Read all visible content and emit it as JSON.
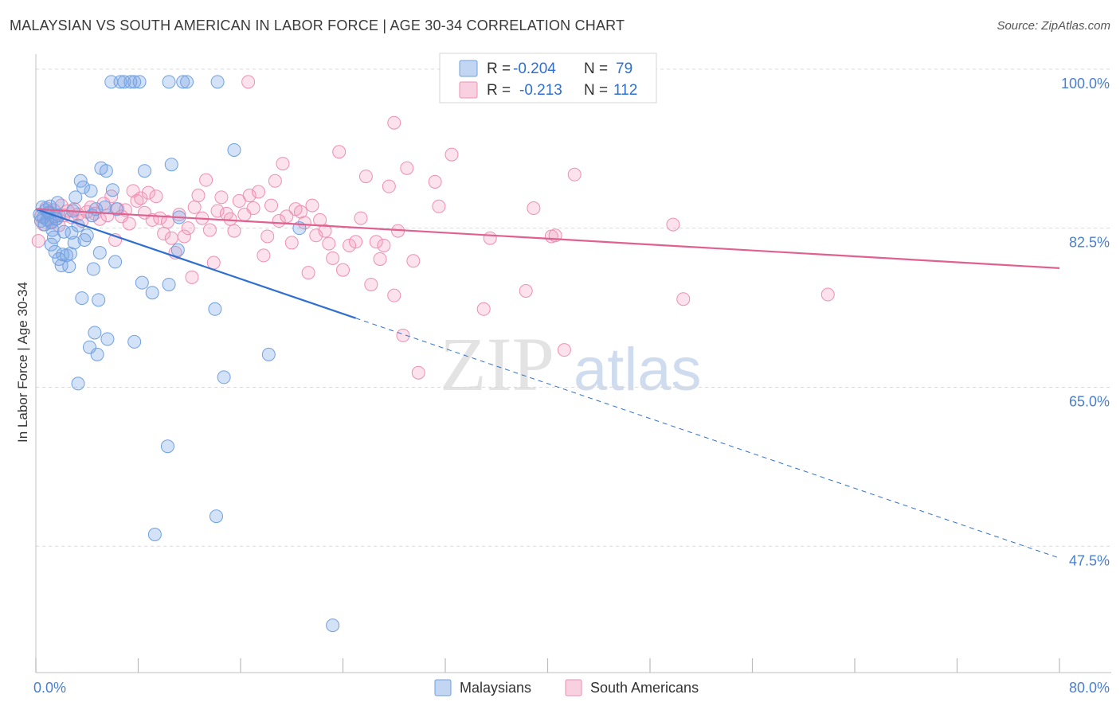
{
  "title": "MALAYSIAN VS SOUTH AMERICAN IN LABOR FORCE | AGE 30-34 CORRELATION CHART",
  "source": "Source: ZipAtlas.com",
  "watermark": {
    "zip": "ZIP",
    "atlas": "atlas"
  },
  "colors": {
    "blue": "#6fa0e0",
    "blue_fill": "rgba(120,165,230,0.32)",
    "blue_line": "#2e6fd0",
    "pink": "#ee8fb0",
    "pink_fill": "rgba(240,150,185,0.28)",
    "pink_line": "#e0608f",
    "tick_label": "#4a7fd0",
    "grid": "#d9d9d9"
  },
  "legend_top": [
    {
      "r_label": "R =",
      "r_value": "-0.204",
      "n_label": "N =",
      "n_value": "79",
      "color": "blue"
    },
    {
      "r_label": "R =",
      "r_value": "-0.213",
      "n_label": "N =",
      "n_value": "112",
      "color": "pink"
    }
  ],
  "legend_bottom": [
    {
      "label": "Malaysians",
      "color": "blue"
    },
    {
      "label": "South Americans",
      "color": "pink"
    }
  ],
  "chart_data": {
    "type": "scatter",
    "title": "MALAYSIAN VS SOUTH AMERICAN IN LABOR FORCE | AGE 30-34 CORRELATION CHART",
    "xlabel": "",
    "ylabel": "In Labor Force | Age 30-34",
    "xlim": [
      0,
      80
    ],
    "ylim": [
      35,
      102
    ],
    "x_tick_labels": [
      "0.0%",
      "80.0%"
    ],
    "y_ticks": [
      47.5,
      65.0,
      82.5,
      100.0
    ],
    "y_tick_labels": [
      "47.5%",
      "65.0%",
      "82.5%",
      "100.0%"
    ],
    "grid": true,
    "legend_position": "top-center",
    "series": [
      {
        "name": "Malaysians",
        "r": -0.204,
        "n": 79,
        "trend": {
          "x0": 0,
          "y0": 86.0,
          "x1": 25,
          "y1": 74.0,
          "x_dashed_end": 80
        },
        "points": [
          [
            0.3,
            85.4
          ],
          [
            0.4,
            84.7
          ],
          [
            0.5,
            86.2
          ],
          [
            0.6,
            85.1
          ],
          [
            0.7,
            84.3
          ],
          [
            0.8,
            85.9
          ],
          [
            0.9,
            84.8
          ],
          [
            1.0,
            85.6
          ],
          [
            1.1,
            86.3
          ],
          [
            1.2,
            84.5
          ],
          [
            1.3,
            83.7
          ],
          [
            1.4,
            82.9
          ],
          [
            1.5,
            85.2
          ],
          [
            1.6,
            84.9
          ],
          [
            1.7,
            86.7
          ],
          [
            1.8,
            85.3
          ],
          [
            1.2,
            82.1
          ],
          [
            1.5,
            81.3
          ],
          [
            1.8,
            80.5
          ],
          [
            2.0,
            79.8
          ],
          [
            2.1,
            81.0
          ],
          [
            2.2,
            83.5
          ],
          [
            2.4,
            80.9
          ],
          [
            2.6,
            79.7
          ],
          [
            2.7,
            81.1
          ],
          [
            2.8,
            83.4
          ],
          [
            3.0,
            82.3
          ],
          [
            3.1,
            87.3
          ],
          [
            3.3,
            84.2
          ],
          [
            3.5,
            89.1
          ],
          [
            3.7,
            88.4
          ],
          [
            3.8,
            82.6
          ],
          [
            4.0,
            83.1
          ],
          [
            4.3,
            88.0
          ],
          [
            4.4,
            85.3
          ],
          [
            4.5,
            79.4
          ],
          [
            4.7,
            86.0
          ],
          [
            5.0,
            81.2
          ],
          [
            5.1,
            90.5
          ],
          [
            5.4,
            86.2
          ],
          [
            5.5,
            90.2
          ],
          [
            6.0,
            88.1
          ],
          [
            6.2,
            80.2
          ],
          [
            3.6,
            76.2
          ],
          [
            4.9,
            76.0
          ],
          [
            4.6,
            72.4
          ],
          [
            4.2,
            70.8
          ],
          [
            4.8,
            70.0
          ],
          [
            5.6,
            71.7
          ],
          [
            7.7,
            71.4
          ],
          [
            3.3,
            66.8
          ],
          [
            8.3,
            77.9
          ],
          [
            9.1,
            76.8
          ],
          [
            10.4,
            77.7
          ],
          [
            10.3,
            59.9
          ],
          [
            11.1,
            81.5
          ],
          [
            11.2,
            85.1
          ],
          [
            14.0,
            75.0
          ],
          [
            14.1,
            52.2
          ],
          [
            14.7,
            67.5
          ],
          [
            18.2,
            70.0
          ],
          [
            9.3,
            50.2
          ],
          [
            23.2,
            40.2
          ],
          [
            15.5,
            92.5
          ],
          [
            8.5,
            90.2
          ],
          [
            10.6,
            90.9
          ],
          [
            5.9,
            100.0
          ],
          [
            6.6,
            100.0
          ],
          [
            6.9,
            100.0
          ],
          [
            7.4,
            100.0
          ],
          [
            7.7,
            100.0
          ],
          [
            8.1,
            100.0
          ],
          [
            10.4,
            100.0
          ],
          [
            11.5,
            100.0
          ],
          [
            11.8,
            100.0
          ],
          [
            14.2,
            100.0
          ],
          [
            20.6,
            83.9
          ],
          [
            6.3,
            86.0
          ],
          [
            2.9,
            85.8
          ]
        ]
      },
      {
        "name": "South Americans",
        "r": -0.213,
        "n": 112,
        "trend": {
          "x0": 0,
          "y0": 86.0,
          "x1": 80,
          "y1": 79.5
        },
        "points": [
          [
            0.2,
            82.5
          ],
          [
            0.4,
            85.2
          ],
          [
            0.6,
            84.3
          ],
          [
            0.8,
            86.1
          ],
          [
            1.0,
            85.5
          ],
          [
            1.2,
            84.6
          ],
          [
            1.4,
            85.9
          ],
          [
            1.6,
            85.0
          ],
          [
            1.8,
            84.2
          ],
          [
            2.0,
            86.4
          ],
          [
            2.2,
            85.3
          ],
          [
            2.5,
            85.8
          ],
          [
            2.8,
            85.1
          ],
          [
            3.0,
            86.0
          ],
          [
            3.3,
            85.4
          ],
          [
            3.6,
            84.7
          ],
          [
            4.0,
            85.7
          ],
          [
            4.3,
            86.2
          ],
          [
            4.6,
            85.5
          ],
          [
            5.0,
            84.9
          ],
          [
            5.3,
            86.6
          ],
          [
            5.6,
            85.3
          ],
          [
            5.9,
            87.4
          ],
          [
            6.2,
            82.6
          ],
          [
            6.4,
            86.0
          ],
          [
            6.7,
            85.2
          ],
          [
            7.0,
            85.9
          ],
          [
            7.3,
            84.4
          ],
          [
            7.6,
            88.0
          ],
          [
            7.9,
            86.9
          ],
          [
            8.2,
            87.2
          ],
          [
            8.5,
            85.6
          ],
          [
            8.8,
            87.8
          ],
          [
            9.1,
            84.8
          ],
          [
            9.4,
            87.4
          ],
          [
            9.7,
            85.0
          ],
          [
            10.0,
            83.3
          ],
          [
            10.3,
            84.6
          ],
          [
            10.6,
            82.8
          ],
          [
            10.9,
            81.2
          ],
          [
            11.2,
            85.4
          ],
          [
            11.6,
            83.0
          ],
          [
            11.9,
            83.9
          ],
          [
            12.2,
            78.5
          ],
          [
            12.4,
            86.2
          ],
          [
            12.7,
            87.5
          ],
          [
            13.0,
            85.0
          ],
          [
            13.3,
            89.2
          ],
          [
            13.6,
            83.7
          ],
          [
            13.9,
            80.1
          ],
          [
            14.2,
            85.8
          ],
          [
            14.5,
            87.3
          ],
          [
            14.9,
            85.5
          ],
          [
            15.2,
            84.9
          ],
          [
            15.5,
            83.6
          ],
          [
            15.9,
            86.9
          ],
          [
            16.3,
            85.4
          ],
          [
            16.7,
            87.5
          ],
          [
            17.0,
            86.1
          ],
          [
            17.4,
            87.9
          ],
          [
            17.8,
            80.9
          ],
          [
            18.1,
            83.0
          ],
          [
            18.4,
            86.4
          ],
          [
            18.7,
            89.1
          ],
          [
            19.0,
            84.7
          ],
          [
            19.3,
            91.0
          ],
          [
            19.6,
            85.2
          ],
          [
            20.0,
            82.3
          ],
          [
            20.3,
            86.0
          ],
          [
            20.7,
            85.7
          ],
          [
            21.0,
            84.5
          ],
          [
            21.3,
            79.0
          ],
          [
            21.6,
            86.4
          ],
          [
            21.9,
            83.1
          ],
          [
            22.2,
            84.8
          ],
          [
            22.6,
            83.6
          ],
          [
            22.9,
            82.2
          ],
          [
            23.2,
            80.6
          ],
          [
            23.7,
            92.3
          ],
          [
            24.0,
            79.3
          ],
          [
            24.5,
            82.0
          ],
          [
            25.0,
            82.4
          ],
          [
            25.4,
            85.0
          ],
          [
            25.8,
            89.6
          ],
          [
            26.2,
            77.7
          ],
          [
            26.6,
            82.4
          ],
          [
            26.9,
            80.5
          ],
          [
            27.2,
            82.0
          ],
          [
            27.6,
            88.5
          ],
          [
            28.0,
            76.5
          ],
          [
            28.3,
            83.6
          ],
          [
            28.7,
            72.1
          ],
          [
            29.0,
            90.5
          ],
          [
            29.5,
            80.3
          ],
          [
            29.9,
            68.0
          ],
          [
            31.2,
            89.0
          ],
          [
            31.5,
            86.3
          ],
          [
            32.5,
            92.0
          ],
          [
            28.0,
            95.5
          ],
          [
            33.5,
            100.0
          ],
          [
            35.5,
            82.8
          ],
          [
            35.0,
            75.0
          ],
          [
            38.3,
            77.0
          ],
          [
            38.9,
            86.1
          ],
          [
            40.3,
            83.0
          ],
          [
            40.6,
            83.1
          ],
          [
            41.3,
            70.5
          ],
          [
            42.1,
            89.8
          ],
          [
            49.8,
            84.3
          ],
          [
            50.6,
            76.1
          ],
          [
            61.9,
            76.6
          ],
          [
            16.6,
            100.0
          ]
        ]
      }
    ]
  }
}
